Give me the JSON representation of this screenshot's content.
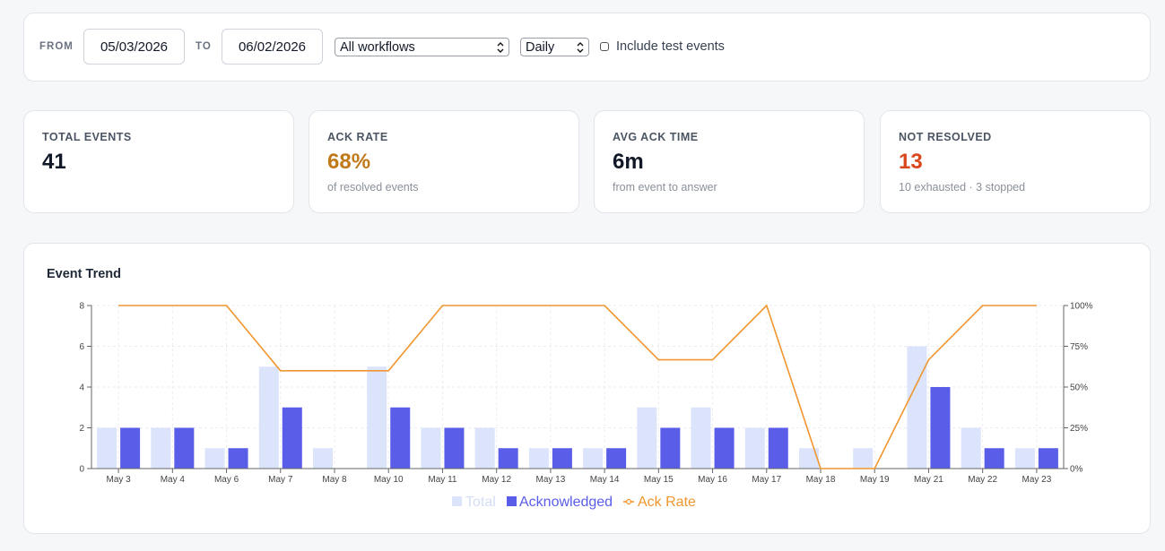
{
  "filters": {
    "from_label": "FROM",
    "from_value": "05/03/2026",
    "to_label": "TO",
    "to_value": "06/02/2026",
    "workflow_select": "All workflows",
    "interval_select": "Daily",
    "include_test_label": "Include test events",
    "include_test_checked": false
  },
  "kpis": [
    {
      "title": "TOTAL EVENTS",
      "value": "41",
      "sub": "",
      "color": "#111827"
    },
    {
      "title": "ACK RATE",
      "value": "68%",
      "sub": "of resolved events",
      "color": "#c07a1a"
    },
    {
      "title": "AVG ACK TIME",
      "value": "6m",
      "sub": "from event to answer",
      "color": "#111827"
    },
    {
      "title": "NOT RESOLVED",
      "value": "13",
      "sub": "10 exhausted · 3 stopped",
      "color": "#d9481c"
    }
  ],
  "chart_title": "Event Trend",
  "chart_data": {
    "type": "bar",
    "categories": [
      "May 3",
      "May 4",
      "May 6",
      "May 7",
      "May 8",
      "May 10",
      "May 11",
      "May 12",
      "May 13",
      "May 14",
      "May 15",
      "May 16",
      "May 17",
      "May 18",
      "May 19",
      "May 21",
      "May 22",
      "May 23"
    ],
    "series": [
      {
        "name": "Total",
        "type": "bar",
        "axis": "left",
        "color": "#dbe4fb",
        "values": [
          2,
          2,
          1,
          5,
          1,
          5,
          2,
          2,
          1,
          1,
          3,
          3,
          2,
          1,
          1,
          6,
          2,
          1
        ]
      },
      {
        "name": "Acknowledged",
        "type": "bar",
        "axis": "left",
        "color": "#5a5de8",
        "values": [
          2,
          2,
          1,
          3,
          0,
          3,
          2,
          1,
          1,
          1,
          2,
          2,
          2,
          0,
          0,
          4,
          1,
          1
        ]
      },
      {
        "name": "Ack Rate",
        "type": "line",
        "axis": "right",
        "color": "#f0962e",
        "values": [
          100,
          100,
          100,
          60,
          60,
          60,
          100,
          100,
          100,
          100,
          66.7,
          66.7,
          100,
          0,
          0,
          66.7,
          100,
          100
        ]
      }
    ],
    "ylim_left": [
      0,
      8
    ],
    "yticks_left": [
      "0",
      "2",
      "4",
      "6",
      "8"
    ],
    "ylim_right": [
      0,
      100
    ],
    "yticks_right": [
      "0%",
      "25%",
      "50%",
      "75%",
      "100%"
    ],
    "grid": true,
    "legend_position": "bottom-center"
  }
}
